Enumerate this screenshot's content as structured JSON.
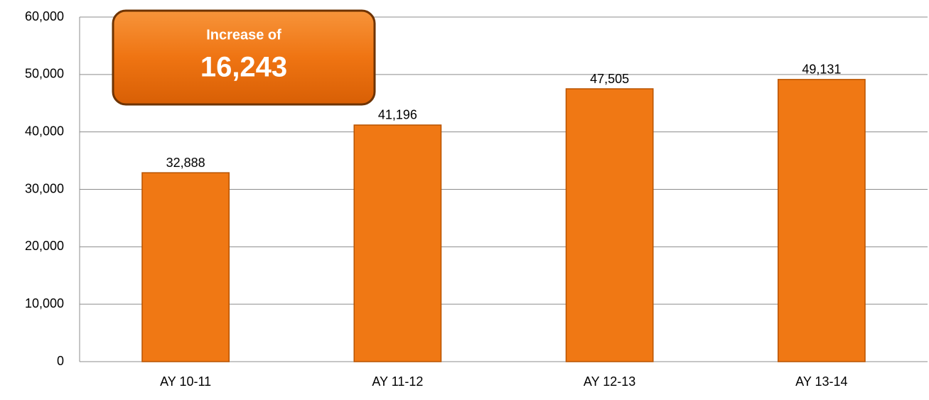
{
  "chart_data": {
    "type": "bar",
    "categories": [
      "AY 10-11",
      "AY 11-12",
      "AY 12-13",
      "AY 13-14"
    ],
    "values": [
      32888,
      41196,
      47505,
      49131
    ],
    "value_labels": [
      "32,888",
      "41,196",
      "47,505",
      "49,131"
    ],
    "color": "#f07814",
    "ylim": [
      0,
      60000
    ],
    "yticks": [
      0,
      {
        "value": 10000,
        "label": "10,000"
      },
      {
        "value": 20000,
        "label": "20,000"
      },
      {
        "value": 30000,
        "label": "30,000"
      },
      {
        "value": 40000,
        "label": "40,000"
      },
      {
        "value": 50000,
        "label": "50,000"
      },
      {
        "value": 60000,
        "label": "60,000"
      }
    ],
    "grid": true,
    "annotation": {
      "title": "Increase of",
      "label": "16,243"
    }
  }
}
